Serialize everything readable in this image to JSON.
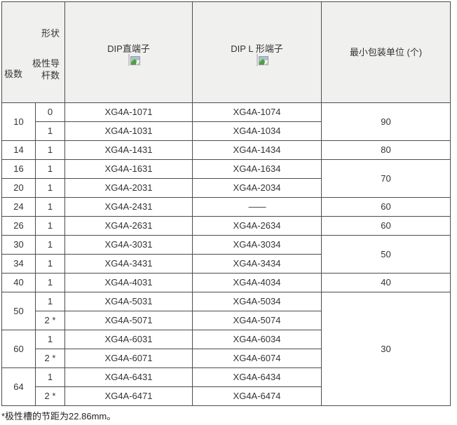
{
  "colors": {
    "table_border": "#4c4c4c",
    "header_background": "#f0f0ef",
    "placeholder_border": "#c7c7c5",
    "text": "#333333"
  },
  "header": {
    "poles_label": "极数",
    "shape_label": "形状",
    "guide_label": "极性导\n杆数",
    "dip_straight_label": "DIP直端子",
    "dip_l_label": "DIP L 形端子",
    "min_pack_label": "最小包装单位 (个)",
    "placeholder_icon": "broken-image-icon"
  },
  "rows": [
    {
      "poles": "10",
      "poles_span": 2,
      "guide": "0",
      "straight": "XG4A-1071",
      "l": "XG4A-1074",
      "pack": "90",
      "pack_span": 2
    },
    {
      "guide": "1",
      "straight": "XG4A-1031",
      "l": "XG4A-1034"
    },
    {
      "poles": "14",
      "poles_span": 1,
      "guide": "1",
      "straight": "XG4A-1431",
      "l": "XG4A-1434",
      "pack": "80",
      "pack_span": 1
    },
    {
      "poles": "16",
      "poles_span": 1,
      "guide": "1",
      "straight": "XG4A-1631",
      "l": "XG4A-1634",
      "pack": "70",
      "pack_span": 2
    },
    {
      "poles": "20",
      "poles_span": 1,
      "guide": "1",
      "straight": "XG4A-2031",
      "l": "XG4A-2034"
    },
    {
      "poles": "24",
      "poles_span": 1,
      "guide": "1",
      "straight": "XG4A-2431",
      "l": "——",
      "pack": "60",
      "pack_span": 1
    },
    {
      "poles": "26",
      "poles_span": 1,
      "guide": "1",
      "straight": "XG4A-2631",
      "l": "XG4A-2634",
      "pack": "60",
      "pack_span": 1
    },
    {
      "poles": "30",
      "poles_span": 1,
      "guide": "1",
      "straight": "XG4A-3031",
      "l": "XG4A-3034",
      "pack": "50",
      "pack_span": 2
    },
    {
      "poles": "34",
      "poles_span": 1,
      "guide": "1",
      "straight": "XG4A-3431",
      "l": "XG4A-3434"
    },
    {
      "poles": "40",
      "poles_span": 1,
      "guide": "1",
      "straight": "XG4A-4031",
      "l": "XG4A-4034",
      "pack": "40",
      "pack_span": 1
    },
    {
      "poles": "50",
      "poles_span": 2,
      "guide": "1",
      "straight": "XG4A-5031",
      "l": "XG4A-5034",
      "pack": "30",
      "pack_span": 6
    },
    {
      "guide": "2 *",
      "straight": "XG4A-5071",
      "l": "XG4A-5074"
    },
    {
      "poles": "60",
      "poles_span": 2,
      "guide": "1",
      "straight": "XG4A-6031",
      "l": "XG4A-6034"
    },
    {
      "guide": "2 *",
      "straight": "XG4A-6071",
      "l": "XG4A-6074"
    },
    {
      "poles": "64",
      "poles_span": 2,
      "guide": "1",
      "straight": "XG4A-6431",
      "l": "XG4A-6434"
    },
    {
      "guide": "2 *",
      "straight": "XG4A-6471",
      "l": "XG4A-6474"
    }
  ],
  "footnote": "*极性槽的节距为22.86mm。"
}
